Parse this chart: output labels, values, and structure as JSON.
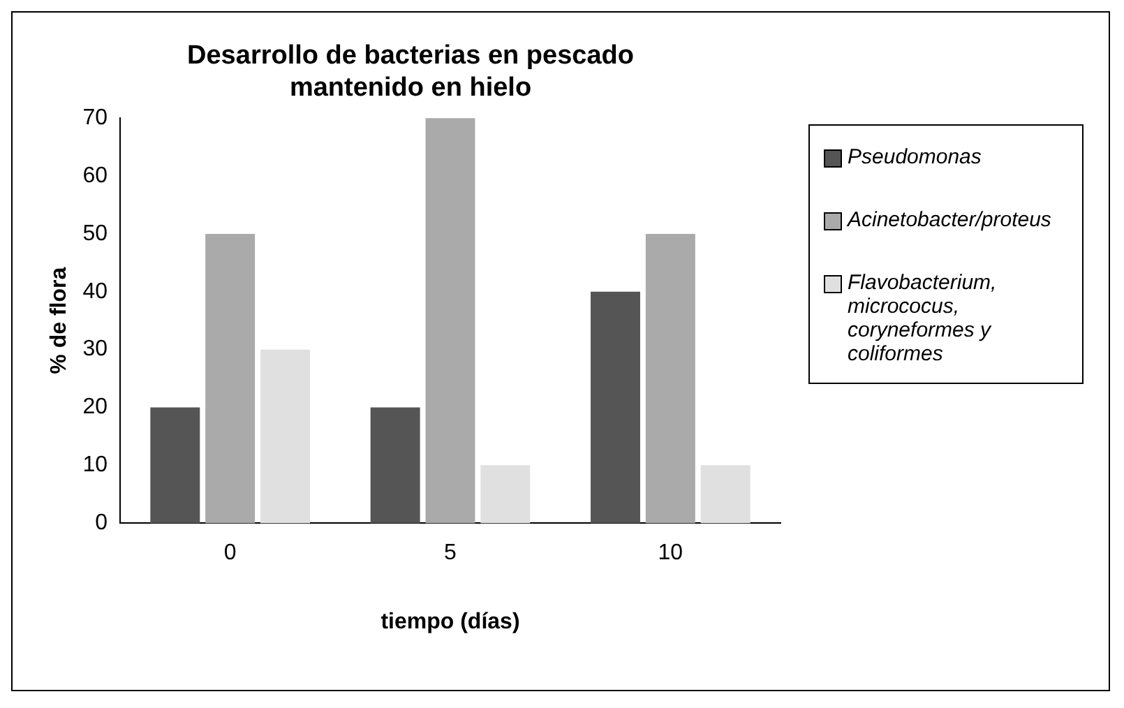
{
  "chart_data": {
    "type": "bar",
    "title": "Desarrollo de bacterias en pescado mantenido en hielo",
    "xlabel": "tiempo (días)",
    "ylabel": "% de flora",
    "categories": [
      "0",
      "5",
      "10"
    ],
    "series": [
      {
        "name": "Pseudomonas",
        "color": "#555555",
        "values": [
          20,
          20,
          40
        ]
      },
      {
        "name": "Acinetobacter/proteus",
        "color": "#aaaaaa",
        "values": [
          50,
          70,
          50
        ]
      },
      {
        "name": "Flavobacterium, micrococus, coryneformes y coliformes",
        "color": "#e0e0e0",
        "values": [
          30,
          10,
          10
        ]
      }
    ],
    "ylim": [
      0,
      70
    ],
    "yticks": [
      0,
      10,
      20,
      30,
      40,
      50,
      60,
      70
    ],
    "grid": false,
    "legend": "right"
  }
}
